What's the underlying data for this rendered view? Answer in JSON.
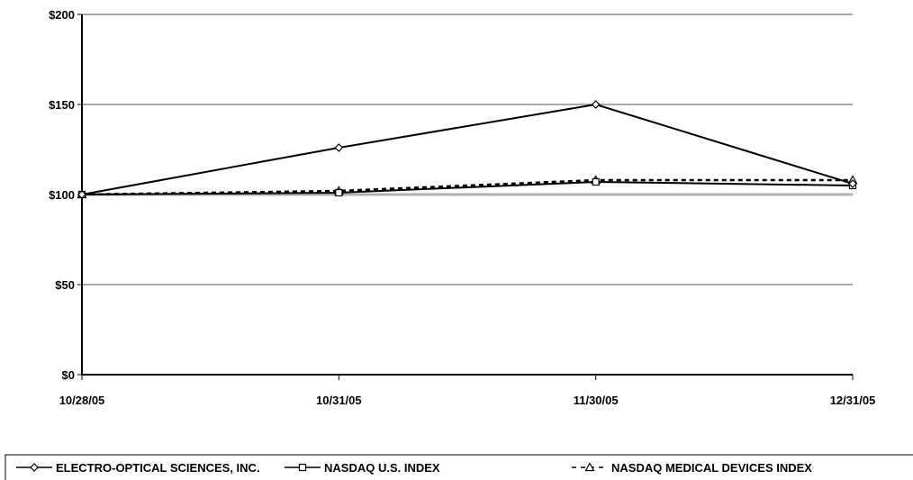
{
  "chart_data": {
    "type": "line",
    "categories": [
      "10/28/05",
      "10/31/05",
      "11/30/05",
      "12/31/05"
    ],
    "ylim": [
      0,
      200
    ],
    "yticks": [
      0,
      50,
      100,
      150,
      200
    ],
    "ytick_labels": [
      "$0",
      "$50",
      "$100",
      "$150",
      "$200"
    ],
    "grid": true,
    "legend_position": "bottom",
    "series": [
      {
        "name": "ELECTRO-OPTICAL SCIENCES, INC.",
        "values": [
          100,
          126,
          150,
          106
        ],
        "marker": "diamond",
        "line": "solid",
        "color": "#000000"
      },
      {
        "name": "NASDAQ U.S. INDEX",
        "values": [
          100,
          101,
          107,
          105
        ],
        "marker": "square",
        "line": "solid",
        "color": "#000000"
      },
      {
        "name": "NASDAQ MEDICAL DEVICES INDEX",
        "values": [
          100,
          102,
          108,
          108
        ],
        "marker": "triangle",
        "line": "dashed",
        "color": "#000000"
      }
    ]
  }
}
